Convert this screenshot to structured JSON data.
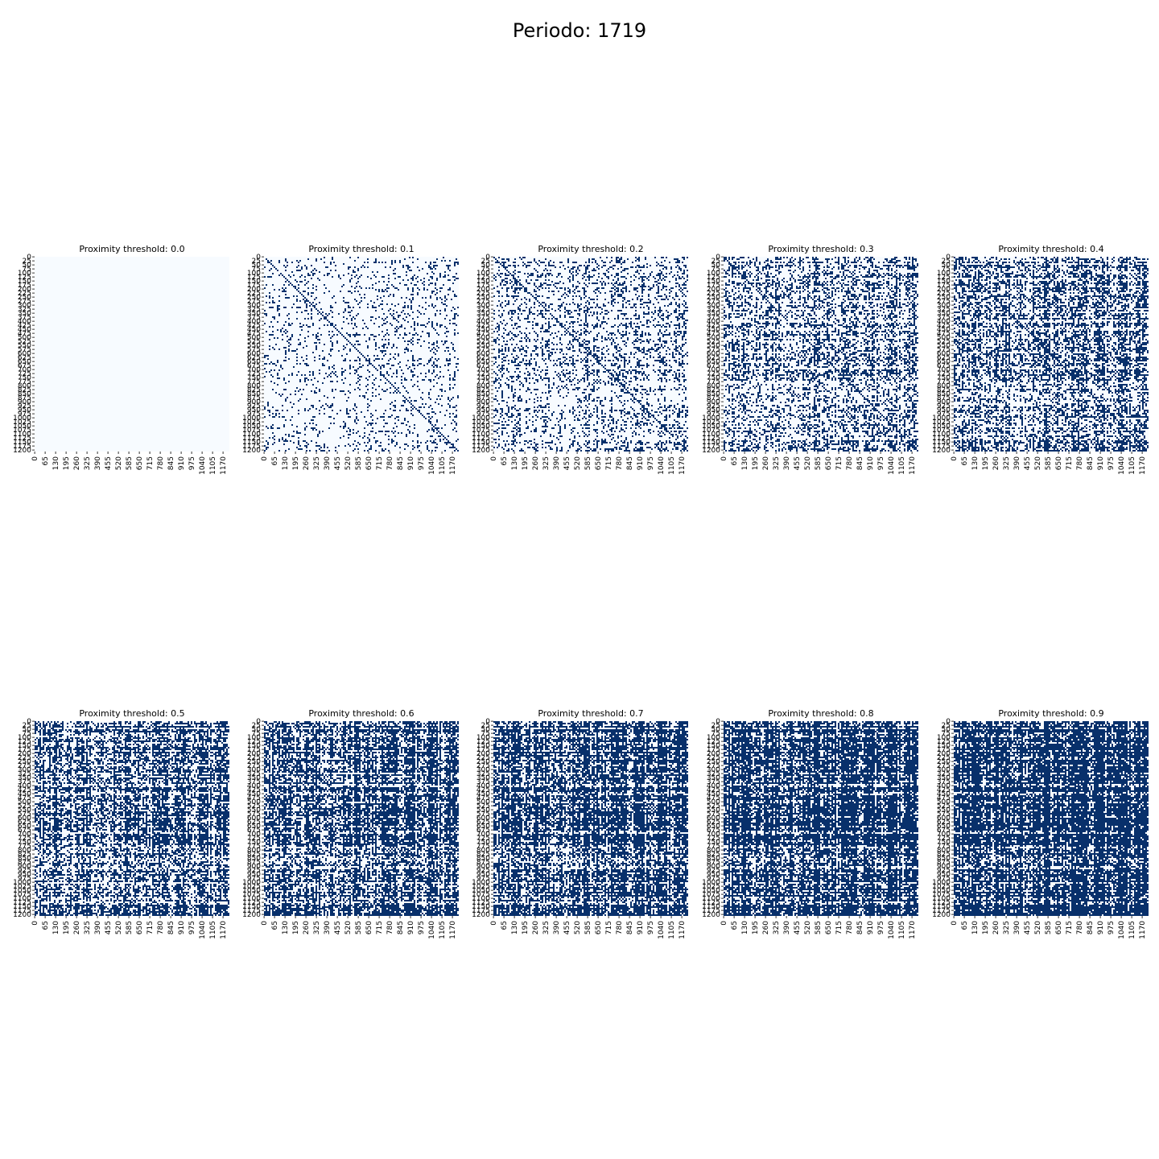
{
  "suptitle": "Periodo: 1719",
  "colors": {
    "empty": "#f7fbff",
    "edge": "#08306b",
    "axis": "#000000"
  },
  "chart_data": {
    "type": "heatmap",
    "colormap": "Blues",
    "grid": false,
    "y_ticks": [
      "0",
      "25",
      "50",
      "75",
      "100",
      "125",
      "150",
      "175",
      "200",
      "225",
      "250",
      "275",
      "300",
      "325",
      "350",
      "375",
      "400",
      "425",
      "450",
      "475",
      "500",
      "525",
      "550",
      "575",
      "600",
      "625",
      "650",
      "675",
      "700",
      "725",
      "750",
      "775",
      "800",
      "825",
      "850",
      "875",
      "900",
      "925",
      "950",
      "975",
      "1000",
      "1025",
      "1050",
      "1075",
      "1100",
      "1125",
      "1150",
      "1175",
      "1200"
    ],
    "x_ticks": [
      "0",
      "65",
      "130",
      "195",
      "260",
      "325",
      "390",
      "455",
      "520",
      "585",
      "650",
      "715",
      "780",
      "845",
      "910",
      "975",
      "1040",
      "1105",
      "1170"
    ],
    "panels": [
      {
        "title": "Proximity threshold: 0.0",
        "threshold": 0.0,
        "density": 0.0
      },
      {
        "title": "Proximity threshold: 0.1",
        "threshold": 0.1,
        "density": 0.12
      },
      {
        "title": "Proximity threshold: 0.2",
        "threshold": 0.2,
        "density": 0.22
      },
      {
        "title": "Proximity threshold: 0.3",
        "threshold": 0.3,
        "density": 0.33
      },
      {
        "title": "Proximity threshold: 0.4",
        "threshold": 0.4,
        "density": 0.42
      },
      {
        "title": "Proximity threshold: 0.5",
        "threshold": 0.5,
        "density": 0.52
      },
      {
        "title": "Proximity threshold: 0.6",
        "threshold": 0.6,
        "density": 0.6
      },
      {
        "title": "Proximity threshold: 0.7",
        "threshold": 0.7,
        "density": 0.68
      },
      {
        "title": "Proximity threshold: 0.8",
        "threshold": 0.8,
        "density": 0.78
      },
      {
        "title": "Proximity threshold: 0.9",
        "threshold": 0.9,
        "density": 0.88
      }
    ]
  }
}
